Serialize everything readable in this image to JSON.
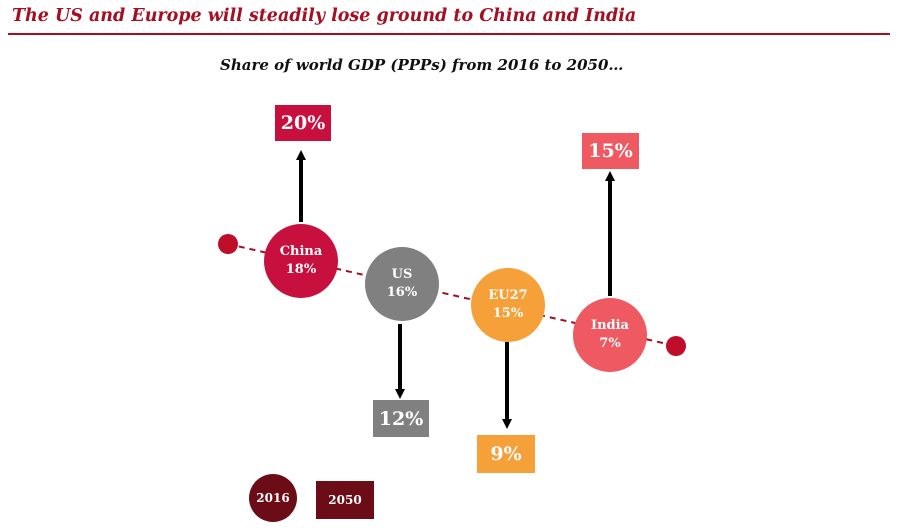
{
  "title": "The US and Europe will steadily lose ground to China and India",
  "subtitle": "Share of world GDP (PPPs) from 2016 to 2050…",
  "colors": {
    "title": "#a50f22",
    "china": "#c8103e",
    "us": "#808080",
    "eu27": "#f5a038",
    "india": "#ef5a62",
    "trend_line": "#a50f22",
    "legend": "#6b0c16"
  },
  "regions": [
    {
      "name": "China",
      "share_2016": "18%",
      "share_2050": "20%"
    },
    {
      "name": "US",
      "share_2016": "16%",
      "share_2050": "12%"
    },
    {
      "name": "EU27",
      "share_2016": "15%",
      "share_2050": "9%"
    },
    {
      "name": "India",
      "share_2016": "7%",
      "share_2050": "15%"
    }
  ],
  "legend": {
    "circle_label": "2016",
    "box_label": "2050"
  }
}
